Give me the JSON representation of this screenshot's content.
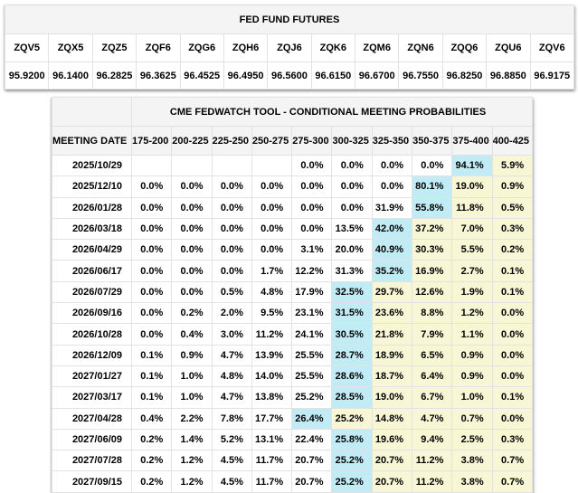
{
  "futures": {
    "title": "FED FUND FUTURES",
    "symbols": [
      "ZQV5",
      "ZQX5",
      "ZQZ5",
      "ZQF6",
      "ZQG6",
      "ZQH6",
      "ZQJ6",
      "ZQK6",
      "ZQM6",
      "ZQN6",
      "ZQQ6",
      "ZQU6",
      "ZQV6"
    ],
    "prices": [
      "95.9200",
      "96.1400",
      "96.2825",
      "96.3625",
      "96.4525",
      "96.4950",
      "96.5600",
      "96.6150",
      "96.6700",
      "96.7550",
      "96.8250",
      "96.8850",
      "96.9175"
    ]
  },
  "fedwatch": {
    "title": "CME FEDWATCH TOOL - CONDITIONAL MEETING PROBABILITIES",
    "date_header": "MEETING DATE",
    "rate_headers": [
      "175-200",
      "200-225",
      "225-250",
      "250-275",
      "275-300",
      "300-325",
      "325-350",
      "350-375",
      "375-400",
      "400-425"
    ],
    "rows": [
      {
        "date": "2025/10/29",
        "values": [
          "",
          "",
          "",
          "",
          "0.0%",
          "0.0%",
          "0.0%",
          "0.0%",
          "94.1%",
          "5.9%"
        ],
        "highlight_index": 8
      },
      {
        "date": "2025/12/10",
        "values": [
          "0.0%",
          "0.0%",
          "0.0%",
          "0.0%",
          "0.0%",
          "0.0%",
          "0.0%",
          "80.1%",
          "19.0%",
          "0.9%"
        ],
        "highlight_index": 7
      },
      {
        "date": "2026/01/28",
        "values": [
          "0.0%",
          "0.0%",
          "0.0%",
          "0.0%",
          "0.0%",
          "0.0%",
          "31.9%",
          "55.8%",
          "11.8%",
          "0.5%"
        ],
        "highlight_index": 7
      },
      {
        "date": "2026/03/18",
        "values": [
          "0.0%",
          "0.0%",
          "0.0%",
          "0.0%",
          "0.0%",
          "13.5%",
          "42.0%",
          "37.2%",
          "7.0%",
          "0.3%"
        ],
        "highlight_index": 6
      },
      {
        "date": "2026/04/29",
        "values": [
          "0.0%",
          "0.0%",
          "0.0%",
          "0.0%",
          "3.1%",
          "20.0%",
          "40.9%",
          "30.3%",
          "5.5%",
          "0.2%"
        ],
        "highlight_index": 6
      },
      {
        "date": "2026/06/17",
        "values": [
          "0.0%",
          "0.0%",
          "0.0%",
          "1.7%",
          "12.2%",
          "31.3%",
          "35.2%",
          "16.9%",
          "2.7%",
          "0.1%"
        ],
        "highlight_index": 6
      },
      {
        "date": "2026/07/29",
        "values": [
          "0.0%",
          "0.0%",
          "0.5%",
          "4.8%",
          "17.9%",
          "32.5%",
          "29.7%",
          "12.6%",
          "1.9%",
          "0.1%"
        ],
        "highlight_index": 5
      },
      {
        "date": "2026/09/16",
        "values": [
          "0.0%",
          "0.2%",
          "2.0%",
          "9.5%",
          "23.1%",
          "31.5%",
          "23.6%",
          "8.8%",
          "1.2%",
          "0.0%"
        ],
        "highlight_index": 5
      },
      {
        "date": "2026/10/28",
        "values": [
          "0.0%",
          "0.4%",
          "3.0%",
          "11.2%",
          "24.1%",
          "30.5%",
          "21.8%",
          "7.9%",
          "1.1%",
          "0.0%"
        ],
        "highlight_index": 5
      },
      {
        "date": "2026/12/09",
        "values": [
          "0.1%",
          "0.9%",
          "4.7%",
          "13.9%",
          "25.5%",
          "28.7%",
          "18.9%",
          "6.5%",
          "0.9%",
          "0.0%"
        ],
        "highlight_index": 5
      },
      {
        "date": "2027/01/27",
        "values": [
          "0.1%",
          "1.0%",
          "4.8%",
          "14.0%",
          "25.5%",
          "28.6%",
          "18.7%",
          "6.4%",
          "0.9%",
          "0.0%"
        ],
        "highlight_index": 5
      },
      {
        "date": "2027/03/17",
        "values": [
          "0.1%",
          "1.0%",
          "4.7%",
          "13.8%",
          "25.2%",
          "28.5%",
          "19.0%",
          "6.7%",
          "1.0%",
          "0.1%"
        ],
        "highlight_index": 5
      },
      {
        "date": "2027/04/28",
        "values": [
          "0.4%",
          "2.2%",
          "7.8%",
          "17.7%",
          "26.4%",
          "25.2%",
          "14.8%",
          "4.7%",
          "0.7%",
          "0.0%"
        ],
        "highlight_index": 4
      },
      {
        "date": "2027/06/09",
        "values": [
          "0.2%",
          "1.4%",
          "5.2%",
          "13.1%",
          "22.4%",
          "25.8%",
          "19.6%",
          "9.4%",
          "2.5%",
          "0.3%"
        ],
        "highlight_index": 5
      },
      {
        "date": "2027/07/28",
        "values": [
          "0.2%",
          "1.2%",
          "4.5%",
          "11.7%",
          "20.7%",
          "25.2%",
          "20.7%",
          "11.2%",
          "3.8%",
          "0.7%"
        ],
        "highlight_index": 5
      },
      {
        "date": "2027/09/15",
        "values": [
          "0.2%",
          "1.2%",
          "4.5%",
          "11.7%",
          "20.7%",
          "25.2%",
          "20.7%",
          "11.2%",
          "3.8%",
          "0.7%"
        ],
        "highlight_index": 5
      }
    ],
    "colors": {
      "highlight_blue": "#c2ecf5",
      "highlight_yellow": "#f7f6d5",
      "header_bg": "#f4f4f4"
    }
  }
}
